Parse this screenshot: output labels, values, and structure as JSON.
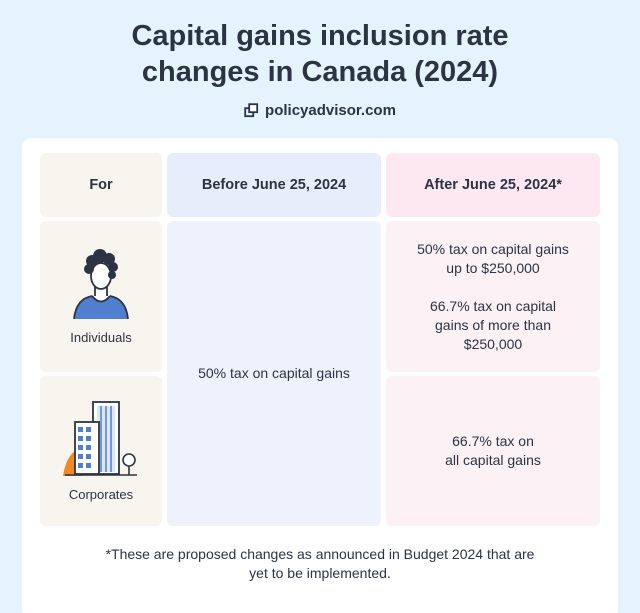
{
  "title": "Capital gains inclusion rate changes in Canada (2024)",
  "brand": {
    "icon": "copy-icon",
    "text": "policyadvisor.com"
  },
  "table": {
    "headers": {
      "for": "For",
      "before": "Before June 25, 2024",
      "after": "After June 25, 2024*"
    },
    "rows": [
      {
        "label": "Individuals",
        "icon": "person-icon",
        "after": [
          "50% tax on capital gains up to $250,000",
          "66.7% tax on capital gains of more than $250,000"
        ]
      },
      {
        "label": "Corporates",
        "icon": "buildings-icon",
        "after": [
          "66.7% tax on all capital gains"
        ]
      }
    ],
    "before_value": "50% tax on capital gains"
  },
  "footnote": "*These are proposed changes as announced in Budget 2024 that are yet to be implemented.",
  "colors": {
    "background": "#e4f3fc",
    "for_column": "#f8f5ee",
    "before_column": "#edf2fc",
    "after_column": "#fcf1f5",
    "accent_blue": "#4f7fce",
    "accent_orange": "#f08a24"
  }
}
